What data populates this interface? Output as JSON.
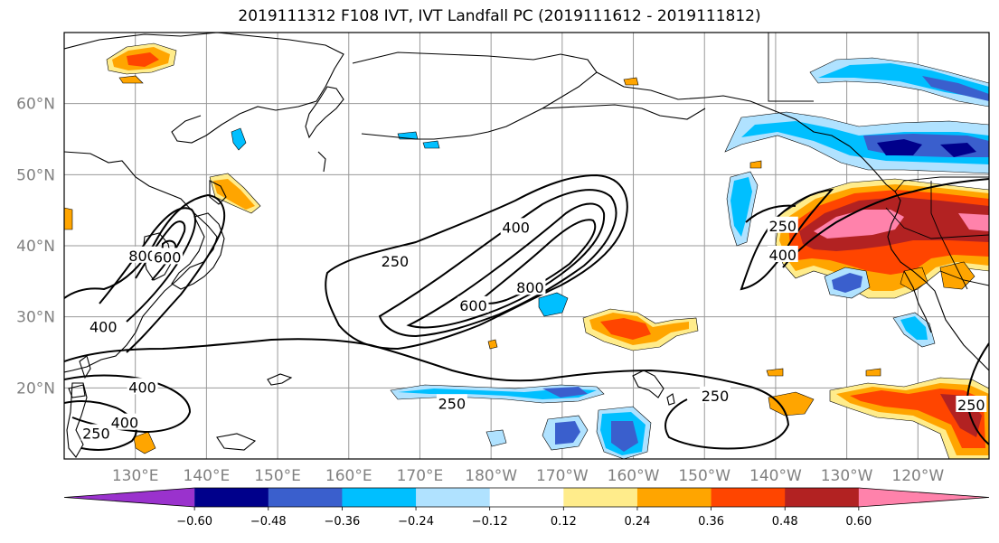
{
  "title": "2019111312 F108 IVT, IVT Landfall PC (2019111612 - 2019111812)",
  "map": {
    "projection": "equirectangular",
    "lon_range": [
      120,
      250
    ],
    "lat_range": [
      10,
      70
    ],
    "gridlines": true,
    "lat_ticks": [
      {
        "lat": 60,
        "label": "60°N"
      },
      {
        "lat": 50,
        "label": "50°N"
      },
      {
        "lat": 40,
        "label": "40°N"
      },
      {
        "lat": 30,
        "label": "30°N"
      },
      {
        "lat": 20,
        "label": "20°N"
      }
    ],
    "lon_ticks": [
      {
        "lon": 130,
        "label": "130°E"
      },
      {
        "lon": 140,
        "label": "140°E"
      },
      {
        "lon": 150,
        "label": "150°E"
      },
      {
        "lon": 160,
        "label": "160°E"
      },
      {
        "lon": 170,
        "label": "170°E"
      },
      {
        "lon": 180,
        "label": "180°W"
      },
      {
        "lon": 190,
        "label": "170°W"
      },
      {
        "lon": 200,
        "label": "160°W"
      },
      {
        "lon": 210,
        "label": "150°W"
      },
      {
        "lon": 220,
        "label": "140°W"
      },
      {
        "lon": 230,
        "label": "130°W"
      },
      {
        "lon": 240,
        "label": "120°W"
      }
    ],
    "contour_labels": [
      {
        "text": "250",
        "lon": 166.5,
        "lat": 37.7
      },
      {
        "text": "400",
        "lon": 183.5,
        "lat": 42.5
      },
      {
        "text": "600",
        "lon": 177.5,
        "lat": 31.5
      },
      {
        "text": "800",
        "lon": 185.5,
        "lat": 34.0
      },
      {
        "text": "250",
        "lon": 174.5,
        "lat": 17.7
      },
      {
        "text": "250",
        "lon": 211.5,
        "lat": 18.8
      },
      {
        "text": "250",
        "lon": 221.0,
        "lat": 42.7
      },
      {
        "text": "400",
        "lon": 221.0,
        "lat": 38.6
      },
      {
        "text": "800",
        "lon": 131.0,
        "lat": 38.5
      },
      {
        "text": "600",
        "lon": 134.5,
        "lat": 38.3
      },
      {
        "text": "400",
        "lon": 125.5,
        "lat": 28.5
      },
      {
        "text": "400",
        "lon": 131.0,
        "lat": 20.0
      },
      {
        "text": "400",
        "lon": 128.5,
        "lat": 15.0
      },
      {
        "text": "250",
        "lon": 124.5,
        "lat": 13.5
      },
      {
        "text": "250",
        "lon": 247.5,
        "lat": 17.5
      }
    ]
  },
  "colorbar": {
    "colors": [
      "#9a32cd",
      "#00008b",
      "#3a5fcd",
      "#00bfff",
      "#b0e2ff",
      "#ffffff",
      "#ffec8b",
      "#ffa500",
      "#ff4500",
      "#b22222",
      "#ff82ab"
    ],
    "ticks": [
      {
        "value": -0.6,
        "label": "−0.60"
      },
      {
        "value": -0.48,
        "label": "−0.48"
      },
      {
        "value": -0.36,
        "label": "−0.36"
      },
      {
        "value": -0.24,
        "label": "−0.24"
      },
      {
        "value": -0.12,
        "label": "−0.12"
      },
      {
        "value": 0.12,
        "label": "0.12"
      },
      {
        "value": 0.24,
        "label": "0.24"
      },
      {
        "value": 0.36,
        "label": "0.36"
      },
      {
        "value": 0.48,
        "label": "0.48"
      },
      {
        "value": 0.6,
        "label": "0.60"
      }
    ]
  }
}
